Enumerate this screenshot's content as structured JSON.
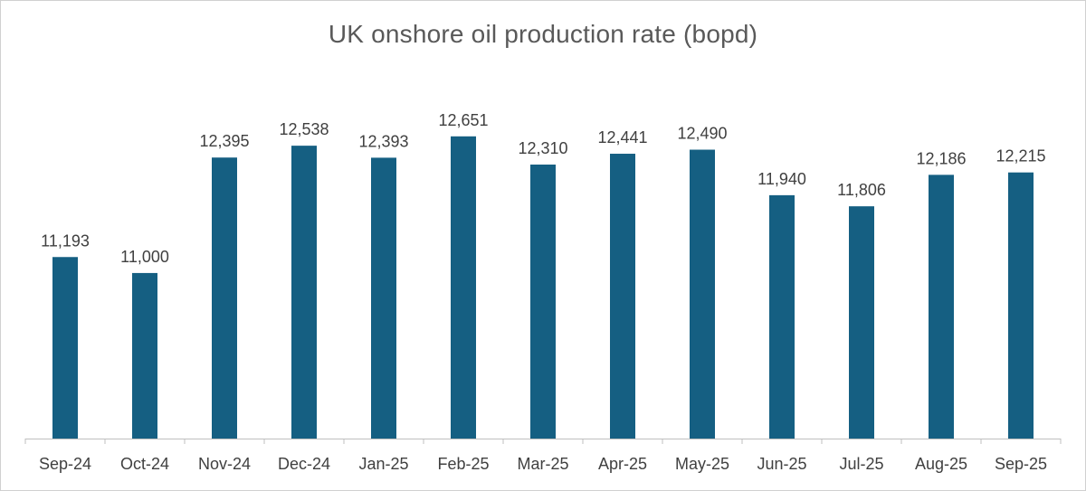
{
  "chart_data": {
    "type": "bar",
    "title": "UK onshore oil production rate (bopd)",
    "xlabel": "",
    "ylabel": "",
    "categories": [
      "Sep-24",
      "Oct-24",
      "Nov-24",
      "Dec-24",
      "Jan-25",
      "Feb-25",
      "Mar-25",
      "Apr-25",
      "May-25",
      "Jun-25",
      "Jul-25",
      "Aug-25",
      "Sep-25"
    ],
    "values": [
      11193,
      11000,
      12395,
      12538,
      12393,
      12651,
      12310,
      12441,
      12490,
      11940,
      11806,
      12186,
      12215
    ],
    "data_labels": [
      "11,193",
      "11,000",
      "12,395",
      "12,538",
      "12,393",
      "12,651",
      "12,310",
      "12,441",
      "12,490",
      "11,940",
      "11,806",
      "12,186",
      "12,215"
    ],
    "ylim": [
      9000,
      12900
    ],
    "grid": false,
    "legend": "none",
    "bar_color": "#155f82"
  }
}
